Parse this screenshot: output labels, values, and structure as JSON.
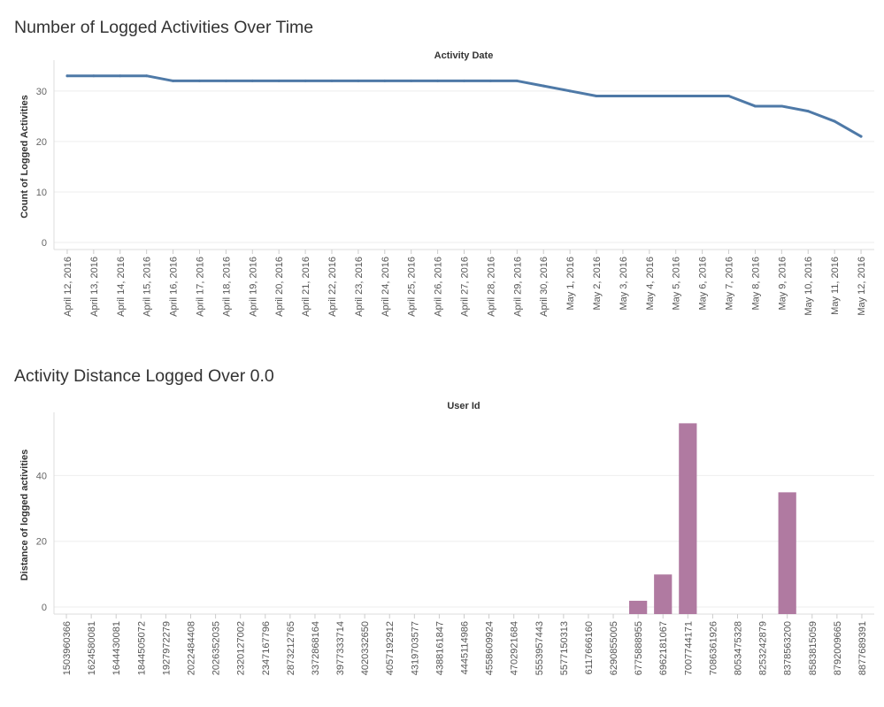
{
  "chart_data": [
    {
      "type": "line",
      "title": "Number of Logged Activities Over Time",
      "header": "Activity Date",
      "xlabel": "Activity Date",
      "ylabel": "Count of Logged Activities",
      "ylim": [
        0,
        34
      ],
      "yticks": [
        0,
        10,
        20,
        30
      ],
      "grid": true,
      "color": "#4e79a7",
      "categories": [
        "April 12, 2016",
        "April 13, 2016",
        "April 14, 2016",
        "April 15, 2016",
        "April 16, 2016",
        "April 17, 2016",
        "April 18, 2016",
        "April 19, 2016",
        "April 20, 2016",
        "April 21, 2016",
        "April 22, 2016",
        "April 23, 2016",
        "April 24, 2016",
        "April 25, 2016",
        "April 26, 2016",
        "April 27, 2016",
        "April 28, 2016",
        "April 29, 2016",
        "April 30, 2016",
        "May 1, 2016",
        "May 2, 2016",
        "May 3, 2016",
        "May 4, 2016",
        "May 5, 2016",
        "May 6, 2016",
        "May 7, 2016",
        "May 8, 2016",
        "May 9, 2016",
        "May 10, 2016",
        "May 11, 2016",
        "May 12, 2016"
      ],
      "values": [
        33,
        33,
        33,
        33,
        32,
        32,
        32,
        32,
        32,
        32,
        32,
        32,
        32,
        32,
        32,
        32,
        32,
        32,
        31,
        30,
        29,
        29,
        29,
        29,
        29,
        29,
        27,
        27,
        26,
        24,
        21
      ]
    },
    {
      "type": "bar",
      "title": "Activity Distance Logged Over 0.0",
      "header": "User Id",
      "xlabel": "User Id",
      "ylabel": "Distance of logged activities",
      "ylim": [
        0,
        56
      ],
      "yticks": [
        0,
        20,
        40
      ],
      "grid": true,
      "color": "#b07aa1",
      "categories": [
        "1503960366",
        "1624580081",
        "1644430081",
        "1844505072",
        "1927972279",
        "2022484408",
        "2026352035",
        "2320127002",
        "2347167796",
        "2873212765",
        "3372868164",
        "3977333714",
        "4020332650",
        "4057192912",
        "4319703577",
        "4388161847",
        "4445114986",
        "4558609924",
        "4702921684",
        "5553957443",
        "5577150313",
        "6117666160",
        "6290855005",
        "6775888955",
        "6962181067",
        "7007744171",
        "7086361926",
        "8053475328",
        "8253242879",
        "8378563200",
        "8583815059",
        "8792009665",
        "8877689391"
      ],
      "values": [
        0,
        0,
        0,
        0,
        0,
        0,
        0,
        0,
        0,
        0,
        0,
        0,
        0,
        0,
        0,
        0,
        0,
        0,
        0,
        0,
        0,
        0,
        0,
        1.9,
        9.9,
        55.9,
        0,
        0,
        0,
        34.9,
        0,
        0,
        0
      ]
    }
  ]
}
